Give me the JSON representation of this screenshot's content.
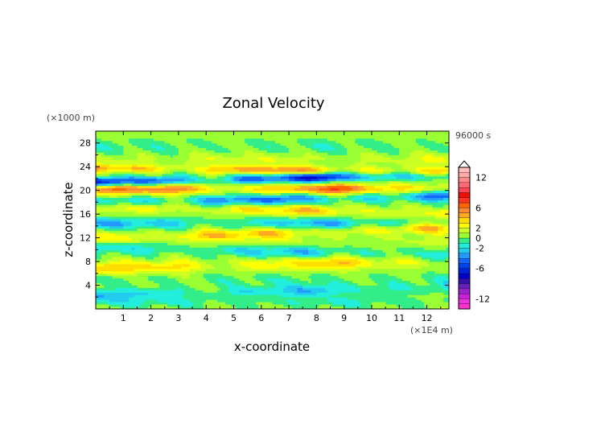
{
  "chart_data": {
    "type": "heatmap",
    "title": "Zonal Velocity",
    "xlabel": "x-coordinate",
    "ylabel": "z-coordinate",
    "x_unit": "(×1E4 m)",
    "y_unit": "(×1000 m)",
    "time_label": "96000 s",
    "xlim": [
      0,
      12.8
    ],
    "ylim": [
      0,
      30
    ],
    "xticks": [
      1,
      2,
      3,
      4,
      5,
      6,
      7,
      8,
      9,
      10,
      11,
      12
    ],
    "yticks": [
      4,
      8,
      12,
      16,
      20,
      24,
      28
    ],
    "colorbar": {
      "levels": [
        -14,
        -13,
        -12,
        -11,
        -10,
        -9,
        -8,
        -7,
        -6,
        -5,
        -4,
        -3,
        -2,
        -1,
        0,
        1,
        2,
        3,
        4,
        5,
        6,
        7,
        8,
        9,
        10,
        11,
        12,
        13,
        14
      ],
      "labels": [
        "12",
        "6",
        "2",
        "0",
        "-2",
        "-6",
        "-12"
      ],
      "label_values": [
        12,
        6,
        2,
        0,
        -2,
        -6,
        -12
      ],
      "extend": "max",
      "colors": [
        "#ff33cc",
        "#ee33dd",
        "#cc22dd",
        "#9922cc",
        "#6622bb",
        "#3311aa",
        "#0000cc",
        "#0022dd",
        "#0044ee",
        "#1166ff",
        "#2299ff",
        "#22ccee",
        "#22eedd",
        "#33ee88",
        "#99ff33",
        "#ccff22",
        "#ffff00",
        "#ffdd00",
        "#ffaa22",
        "#ff8833",
        "#ff6600",
        "#ff3322",
        "#ee1100",
        "#ff4455",
        "#ff6677",
        "#ff8888",
        "#ffaaaa",
        "#ffbbbb"
      ]
    },
    "bands": [
      {
        "z": 1.2,
        "amp": -1.5,
        "w": 0.9,
        "phase": 0.0,
        "tilt": 0.0
      },
      {
        "z": 3.0,
        "amp": -3.0,
        "w": 1.0,
        "phase": 1.2,
        "tilt": 0.1
      },
      {
        "z": 5.0,
        "amp": -1.0,
        "w": 1.0,
        "phase": 2.1,
        "tilt": 0.0
      },
      {
        "z": 7.5,
        "amp": 3.5,
        "w": 1.1,
        "phase": 0.4,
        "tilt": 0.1
      },
      {
        "z": 9.8,
        "amp": -3.0,
        "w": 1.0,
        "phase": 1.8,
        "tilt": -0.1
      },
      {
        "z": 11.5,
        "amp": 1.0,
        "w": 1.0,
        "phase": 2.6,
        "tilt": 0.0
      },
      {
        "z": 12.8,
        "amp": 3.5,
        "w": 0.9,
        "phase": 3.1,
        "tilt": 0.15
      },
      {
        "z": 14.5,
        "amp": -3.5,
        "w": 0.9,
        "phase": 0.7,
        "tilt": 0.0
      },
      {
        "z": 16.8,
        "amp": 3.5,
        "w": 0.9,
        "phase": 1.5,
        "tilt": -0.1
      },
      {
        "z": 18.5,
        "amp": -5.0,
        "w": 0.9,
        "phase": 2.4,
        "tilt": 0.1
      },
      {
        "z": 20.3,
        "amp": 6.0,
        "w": 0.9,
        "phase": 0.2,
        "tilt": 0.0
      },
      {
        "z": 22.0,
        "amp": -7.0,
        "w": 0.8,
        "phase": 1.0,
        "tilt": 0.1
      },
      {
        "z": 23.5,
        "amp": 5.0,
        "w": 0.7,
        "phase": 2.0,
        "tilt": -0.05
      },
      {
        "z": 25.2,
        "amp": 1.5,
        "w": 1.0,
        "phase": 2.9,
        "tilt": 0.0
      },
      {
        "z": 27.5,
        "amp": -1.0,
        "w": 1.2,
        "phase": 0.5,
        "tilt": 0.0
      }
    ]
  }
}
